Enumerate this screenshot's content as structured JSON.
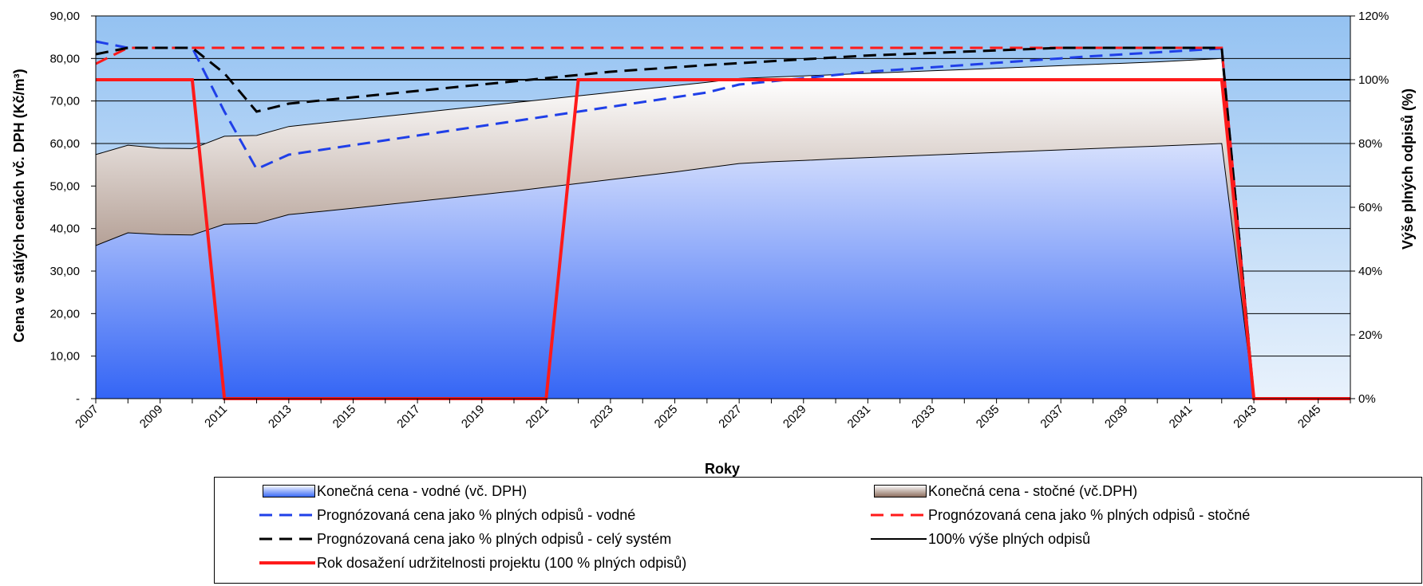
{
  "chart_data": {
    "type": "area",
    "title": "",
    "xlabel": "Roky",
    "ylabel": "Cena ve stálých cenách vč. DPH (Kč/m³)",
    "y2label": "Výše plných odpisů (%)",
    "x": [
      2007,
      2008,
      2009,
      2010,
      2011,
      2012,
      2013,
      2014,
      2015,
      2016,
      2017,
      2018,
      2019,
      2020,
      2021,
      2022,
      2023,
      2024,
      2025,
      2026,
      2027,
      2028,
      2029,
      2030,
      2031,
      2032,
      2033,
      2034,
      2035,
      2036,
      2037,
      2038,
      2039,
      2040,
      2041,
      2042,
      2043,
      2044,
      2045,
      2046
    ],
    "x_tick_labels": [
      "2007",
      "2009",
      "2011",
      "2013",
      "2015",
      "2017",
      "2019",
      "2021",
      "2023",
      "2025",
      "2027",
      "2029",
      "2031",
      "2033",
      "2035",
      "2037",
      "2039",
      "2041",
      "2043",
      "2045"
    ],
    "ylim": [
      0,
      90
    ],
    "y_tick_labels": [
      "-",
      "10,00",
      "20,00",
      "30,00",
      "40,00",
      "50,00",
      "60,00",
      "70,00",
      "80,00",
      "90,00"
    ],
    "y2lim": [
      0,
      120
    ],
    "y2_tick_labels": [
      "0%",
      "20%",
      "40%",
      "60%",
      "80%",
      "100%",
      "120%"
    ],
    "grid": "horizontal",
    "legend_position": "bottom",
    "series": [
      {
        "name": "Konečná cena - vodné (vč. DPH)",
        "kind": "area",
        "axis": "left",
        "color": "#3b6cf5",
        "values": [
          36.0,
          39.0,
          38.6,
          38.5,
          41.0,
          41.2,
          43.3,
          44.0,
          44.8,
          45.6,
          46.4,
          47.2,
          48.0,
          48.8,
          49.7,
          50.6,
          51.5,
          52.4,
          53.3,
          54.3,
          55.3,
          55.7,
          56.0,
          56.4,
          56.7,
          57.0,
          57.3,
          57.6,
          57.9,
          58.2,
          58.5,
          58.8,
          59.1,
          59.4,
          59.7,
          60.0,
          0,
          null,
          null,
          null
        ]
      },
      {
        "name": "Konečná cena - stočné (vč.DPH)",
        "kind": "area",
        "axis": "left",
        "color": "#8a6a5a",
        "values": [
          57.4,
          59.6,
          58.9,
          58.8,
          61.7,
          61.9,
          64.0,
          64.8,
          65.6,
          66.4,
          67.2,
          68.0,
          68.8,
          69.6,
          70.4,
          71.2,
          72.0,
          72.8,
          73.6,
          74.4,
          75.3,
          75.6,
          75.9,
          76.2,
          76.5,
          76.8,
          77.1,
          77.4,
          77.7,
          78.0,
          78.3,
          78.6,
          78.9,
          79.2,
          79.6,
          80.0,
          0,
          null,
          null,
          null
        ]
      },
      {
        "name": "Prognózovaná cena jako % plných odpisů - vodné",
        "kind": "dashed-line",
        "axis": "right",
        "color": "#1f3fe8",
        "values": [
          112,
          110,
          110,
          110,
          90,
          72,
          76.5,
          78,
          79.5,
          81,
          82.5,
          84,
          85.5,
          87,
          88.5,
          90,
          91.5,
          93,
          94.5,
          96,
          98.5,
          99.5,
          100.5,
          101.5,
          102.5,
          103.2,
          103.9,
          104.6,
          105.3,
          106,
          106.7,
          107.4,
          108,
          108.6,
          109.2,
          109.8,
          0,
          null,
          null,
          null
        ]
      },
      {
        "name": "Prognózovaná cena jako % plných odpisů - stočné",
        "kind": "dashed-line",
        "axis": "right",
        "color": "#ff1a1a",
        "values": [
          105,
          110,
          110,
          110,
          110,
          110,
          110,
          110,
          110,
          110,
          110,
          110,
          110,
          110,
          110,
          110,
          110,
          110,
          110,
          110,
          110,
          110,
          110,
          110,
          110,
          110,
          110,
          110,
          110,
          110,
          110,
          110,
          110,
          110,
          110,
          110,
          0,
          null,
          null,
          null
        ]
      },
      {
        "name": "Prognózovaná cena jako % plných odpisů - celý systém",
        "kind": "dashed-line",
        "axis": "right",
        "color": "#000000",
        "values": [
          108,
          110,
          110,
          110,
          102,
          90,
          92.5,
          93.5,
          94.5,
          95.5,
          96.5,
          97.5,
          98.5,
          99.5,
          100.5,
          101.5,
          102.5,
          103.2,
          103.9,
          104.6,
          105.2,
          105.8,
          106.4,
          107,
          107.6,
          108,
          108.4,
          108.8,
          109.2,
          109.6,
          110,
          110,
          110,
          110,
          110,
          110,
          0,
          null,
          null,
          null
        ]
      },
      {
        "name": "100% výše plných odpisů",
        "kind": "solid-line",
        "axis": "right",
        "color": "#000000",
        "values": [
          100,
          100,
          100,
          100,
          100,
          100,
          100,
          100,
          100,
          100,
          100,
          100,
          100,
          100,
          100,
          100,
          100,
          100,
          100,
          100,
          100,
          100,
          100,
          100,
          100,
          100,
          100,
          100,
          100,
          100,
          100,
          100,
          100,
          100,
          100,
          100,
          100,
          100,
          100,
          100
        ]
      },
      {
        "name": "Rok dosažení udržitelnosti projektu (100 % plných odpisů)",
        "kind": "thick-line",
        "axis": "right",
        "color": "#ff1a1a",
        "values": [
          100,
          100,
          100,
          100,
          0,
          0,
          0,
          0,
          0,
          0,
          0,
          0,
          0,
          0,
          0,
          100,
          100,
          100,
          100,
          100,
          100,
          100,
          100,
          100,
          100,
          100,
          100,
          100,
          100,
          100,
          100,
          100,
          100,
          100,
          100,
          100,
          0,
          0,
          0,
          0
        ]
      }
    ]
  },
  "colors": {
    "sky_top": "#94c2f2",
    "sky_bottom": "#e9f2fc",
    "water_top": "#ffffff",
    "water_bottom": "#3465f5",
    "sewer_top": "#ffffff",
    "sewer_bottom": "#8a6a5a"
  }
}
